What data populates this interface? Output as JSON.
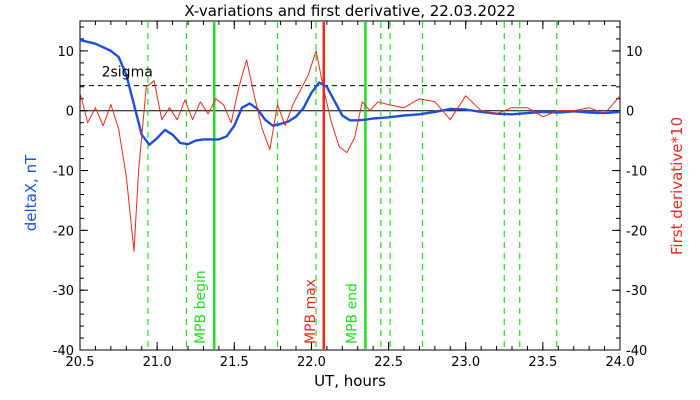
{
  "chart_data": {
    "type": "line",
    "title": "X-variations and first derivative, 22.03.2022",
    "xlabel": "UT, hours",
    "ylabel_left": "deltaX, nT",
    "ylabel_right": "First derivative*10",
    "xlim": [
      20.5,
      24.0
    ],
    "ylim": [
      -40,
      15
    ],
    "x_ticks": [
      "20.5",
      "21.0",
      "21.5",
      "22.0",
      "22.5",
      "23.0",
      "23.5",
      "24.0"
    ],
    "y_ticks": [
      "10",
      "0",
      "-10",
      "-20",
      "-30",
      "-40"
    ],
    "threshold": {
      "label": "2sigma",
      "value": 4.2
    },
    "zero_line": 0,
    "grid": false,
    "colors": {
      "deltaX": "#1f4fd8",
      "derivative": "#e8281e",
      "mpb_edges": "#22dd22",
      "mpb_max": "#e8281e",
      "dashed_markers": "#22dd22"
    },
    "vertical_markers": [
      {
        "label": "MPB begin",
        "x": 21.37,
        "color": "#22dd22"
      },
      {
        "label": "MPB max",
        "x": 22.08,
        "color": "#e8281e"
      },
      {
        "label": "MPB end",
        "x": 22.35,
        "color": "#22dd22"
      }
    ],
    "dashed_markers_x": [
      20.94,
      21.19,
      21.78,
      22.03,
      22.45,
      22.51,
      22.72,
      23.25,
      23.35,
      23.59
    ],
    "series": [
      {
        "key": "deltaX",
        "color": "#1f4fd8",
        "x": [
          20.5,
          20.6,
          20.7,
          20.75,
          20.8,
          20.85,
          20.9,
          20.95,
          21.0,
          21.05,
          21.1,
          21.15,
          21.2,
          21.25,
          21.3,
          21.35,
          21.4,
          21.45,
          21.5,
          21.55,
          21.6,
          21.65,
          21.7,
          21.75,
          21.8,
          21.85,
          21.9,
          21.95,
          22.0,
          22.05,
          22.1,
          22.15,
          22.2,
          22.25,
          22.3,
          22.35,
          22.4,
          22.45,
          22.5,
          22.6,
          22.7,
          22.8,
          22.9,
          23.0,
          23.1,
          23.2,
          23.3,
          23.4,
          23.5,
          23.6,
          23.7,
          23.8,
          23.9,
          24.0
        ],
        "values": [
          11.8,
          11.2,
          10.0,
          9.0,
          6.0,
          1.0,
          -4.0,
          -5.7,
          -4.6,
          -3.2,
          -4.0,
          -5.4,
          -5.6,
          -5.0,
          -4.8,
          -4.8,
          -4.8,
          -4.3,
          -2.5,
          0.5,
          1.2,
          0.3,
          -1.5,
          -2.5,
          -2.2,
          -1.8,
          -1.0,
          0.5,
          3.0,
          4.7,
          4.0,
          1.6,
          -0.8,
          -1.6,
          -1.6,
          -1.5,
          -1.3,
          -1.2,
          -1.1,
          -0.8,
          -0.6,
          -0.2,
          0.3,
          0.2,
          -0.2,
          -0.5,
          -0.6,
          -0.4,
          -0.2,
          -0.3,
          -0.1,
          -0.3,
          -0.4,
          -0.2
        ]
      },
      {
        "key": "derivative",
        "color": "#e8281e",
        "x": [
          20.5,
          20.55,
          20.6,
          20.65,
          20.7,
          20.75,
          20.8,
          20.85,
          20.88,
          20.93,
          20.98,
          21.03,
          21.08,
          21.13,
          21.18,
          21.23,
          21.28,
          21.33,
          21.38,
          21.43,
          21.48,
          21.53,
          21.58,
          21.63,
          21.68,
          21.73,
          21.78,
          21.83,
          21.88,
          21.93,
          21.98,
          22.03,
          22.08,
          22.13,
          22.18,
          22.23,
          22.28,
          22.33,
          22.38,
          22.43,
          22.5,
          22.6,
          22.7,
          22.8,
          22.9,
          23.0,
          23.1,
          23.2,
          23.3,
          23.4,
          23.5,
          23.6,
          23.7,
          23.8,
          23.9,
          24.0
        ],
        "values": [
          3.0,
          -2.0,
          0.5,
          -2.5,
          1.0,
          -3.0,
          -11.0,
          -23.5,
          -10.0,
          4.0,
          5.0,
          -1.5,
          0.5,
          -1.5,
          1.8,
          -1.5,
          1.5,
          -0.5,
          2.0,
          1.0,
          -2.0,
          4.0,
          8.5,
          2.5,
          -3.0,
          -6.5,
          1.0,
          -2.5,
          1.0,
          3.5,
          6.0,
          10.0,
          3.5,
          -2.0,
          -6.0,
          -7.0,
          -4.5,
          1.5,
          0.0,
          1.5,
          1.0,
          0.5,
          2.0,
          1.5,
          -1.5,
          2.5,
          0.0,
          -0.5,
          0.5,
          0.5,
          -1.0,
          0.0,
          0.0,
          0.5,
          -0.5,
          2.5
        ]
      }
    ]
  }
}
